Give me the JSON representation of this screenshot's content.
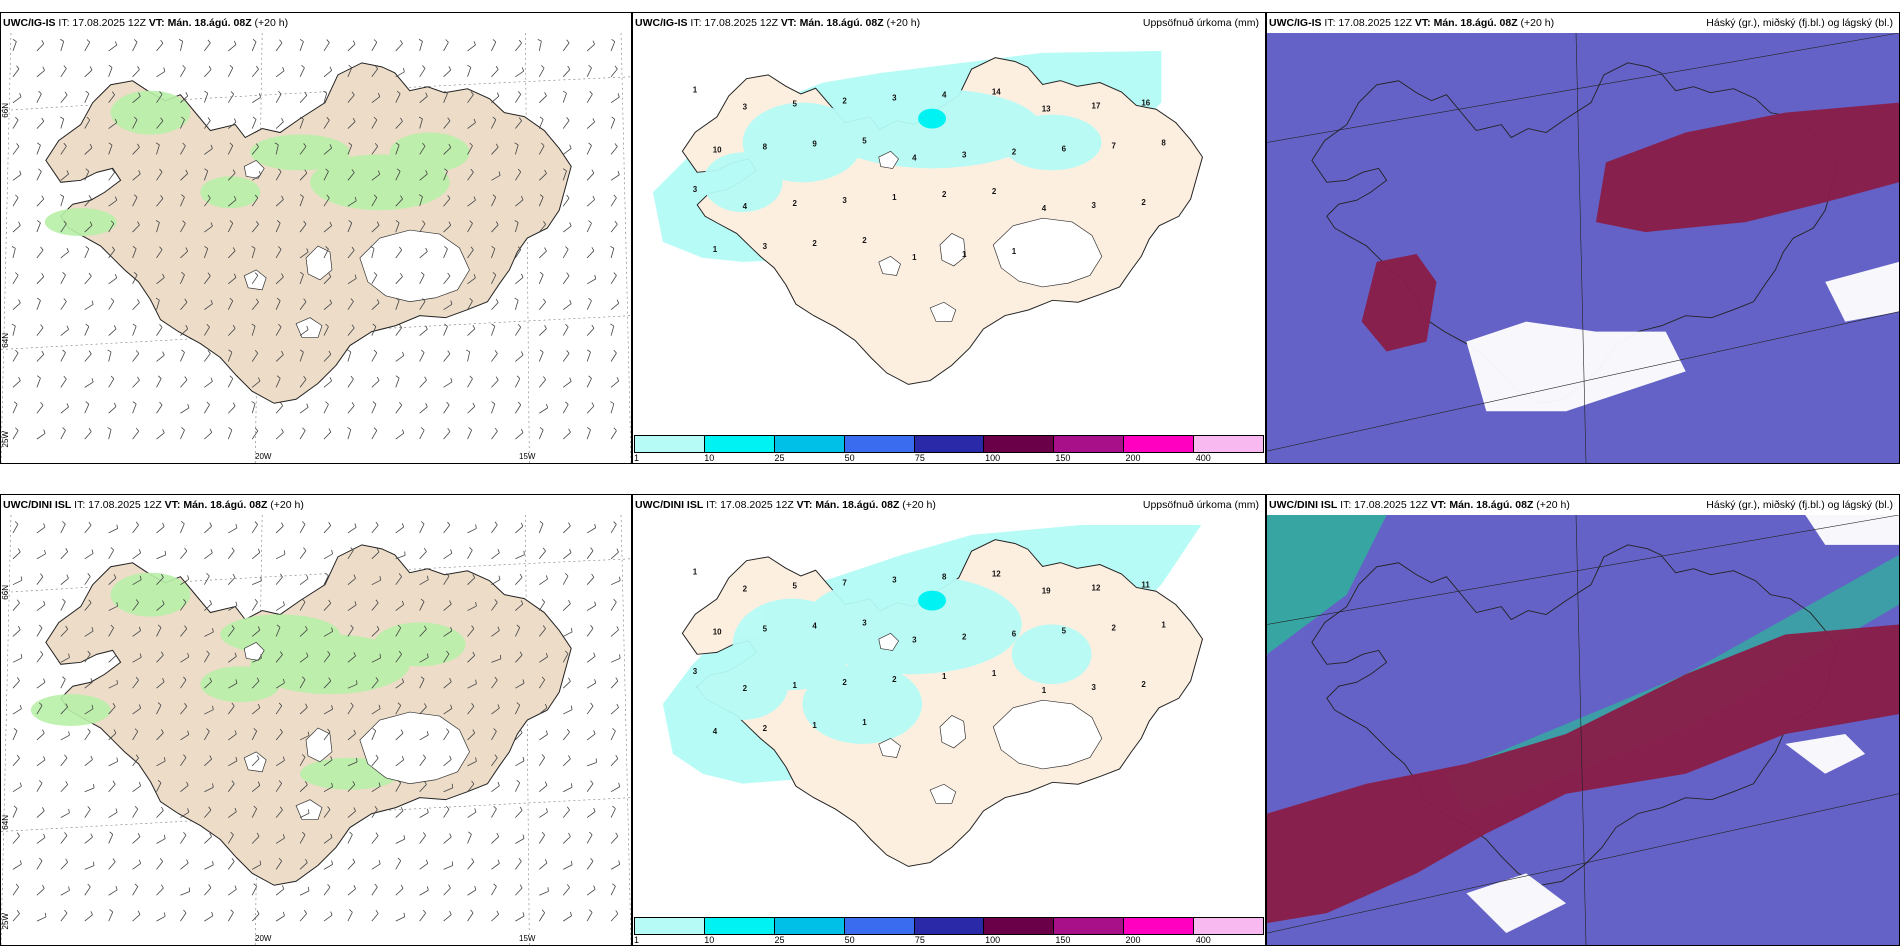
{
  "rows": [
    {
      "model": "UWC/IG-IS",
      "it_label": "IT: 17.08.2025 12Z",
      "vt_label": "VT: Mán. 18.ágú. 08Z",
      "lead": "(+20 h)",
      "lon_labels": [
        "20W",
        "15W"
      ],
      "lat_labels": [
        "66N",
        "64N",
        "25W"
      ],
      "precip_title": "Uppsöfnuð úrkoma (mm)",
      "cloud_title": "Háský (gr.), miðský (fj.bl.) og lágský (bl.)",
      "precip_values": [
        "1",
        "3",
        "5",
        "2",
        "3",
        "4",
        "14",
        "13",
        "17",
        "16",
        "10",
        "8",
        "9",
        "5",
        "4",
        "3",
        "2",
        "6",
        "7",
        "8",
        "3",
        "4",
        "2",
        "3",
        "1",
        "2",
        "2",
        "4",
        "3",
        "2",
        "1",
        "3",
        "2",
        "2",
        "1",
        "1",
        "1"
      ]
    },
    {
      "model": "UWC/DINI ISL",
      "it_label": "IT: 17.08.2025 12Z",
      "vt_label": "VT: Mán. 18.ágú. 08Z",
      "lead": "(+20 h)",
      "lon_labels": [
        "20W",
        "15W"
      ],
      "lat_labels": [
        "66N",
        "64N",
        "25W"
      ],
      "precip_title": "Uppsöfnuð úrkoma (mm)",
      "cloud_title": "Háský (gr.), miðský (fj.bl.) og lágský (bl.)",
      "precip_values": [
        "1",
        "2",
        "5",
        "7",
        "3",
        "8",
        "12",
        "19",
        "12",
        "11",
        "10",
        "5",
        "4",
        "3",
        "3",
        "2",
        "6",
        "5",
        "2",
        "1",
        "3",
        "2",
        "1",
        "2",
        "2",
        "1",
        "1",
        "1",
        "3",
        "2",
        "4",
        "2",
        "1",
        "1"
      ]
    }
  ],
  "colorbar": {
    "levels": [
      "1",
      "10",
      "25",
      "50",
      "75",
      "100",
      "150",
      "200",
      "400"
    ],
    "colors": [
      "#b6fbf6",
      "#00f2f2",
      "#00c0e8",
      "#3a6cf0",
      "#2a2aa8",
      "#6a0048",
      "#a8108a",
      "#ff00c0",
      "#f8b8f0"
    ]
  },
  "map_colors": {
    "land": "#ecdcc8",
    "land_light": "#fdefe0",
    "glacier": "#ffffff",
    "green": "#b8f0a8",
    "cyan": "#b6fbf6",
    "cloud_bg": "#6462c6",
    "cloud_red": "#8a1c48",
    "cloud_green": "#2cb89a",
    "cloud_white": "#ffffff"
  }
}
